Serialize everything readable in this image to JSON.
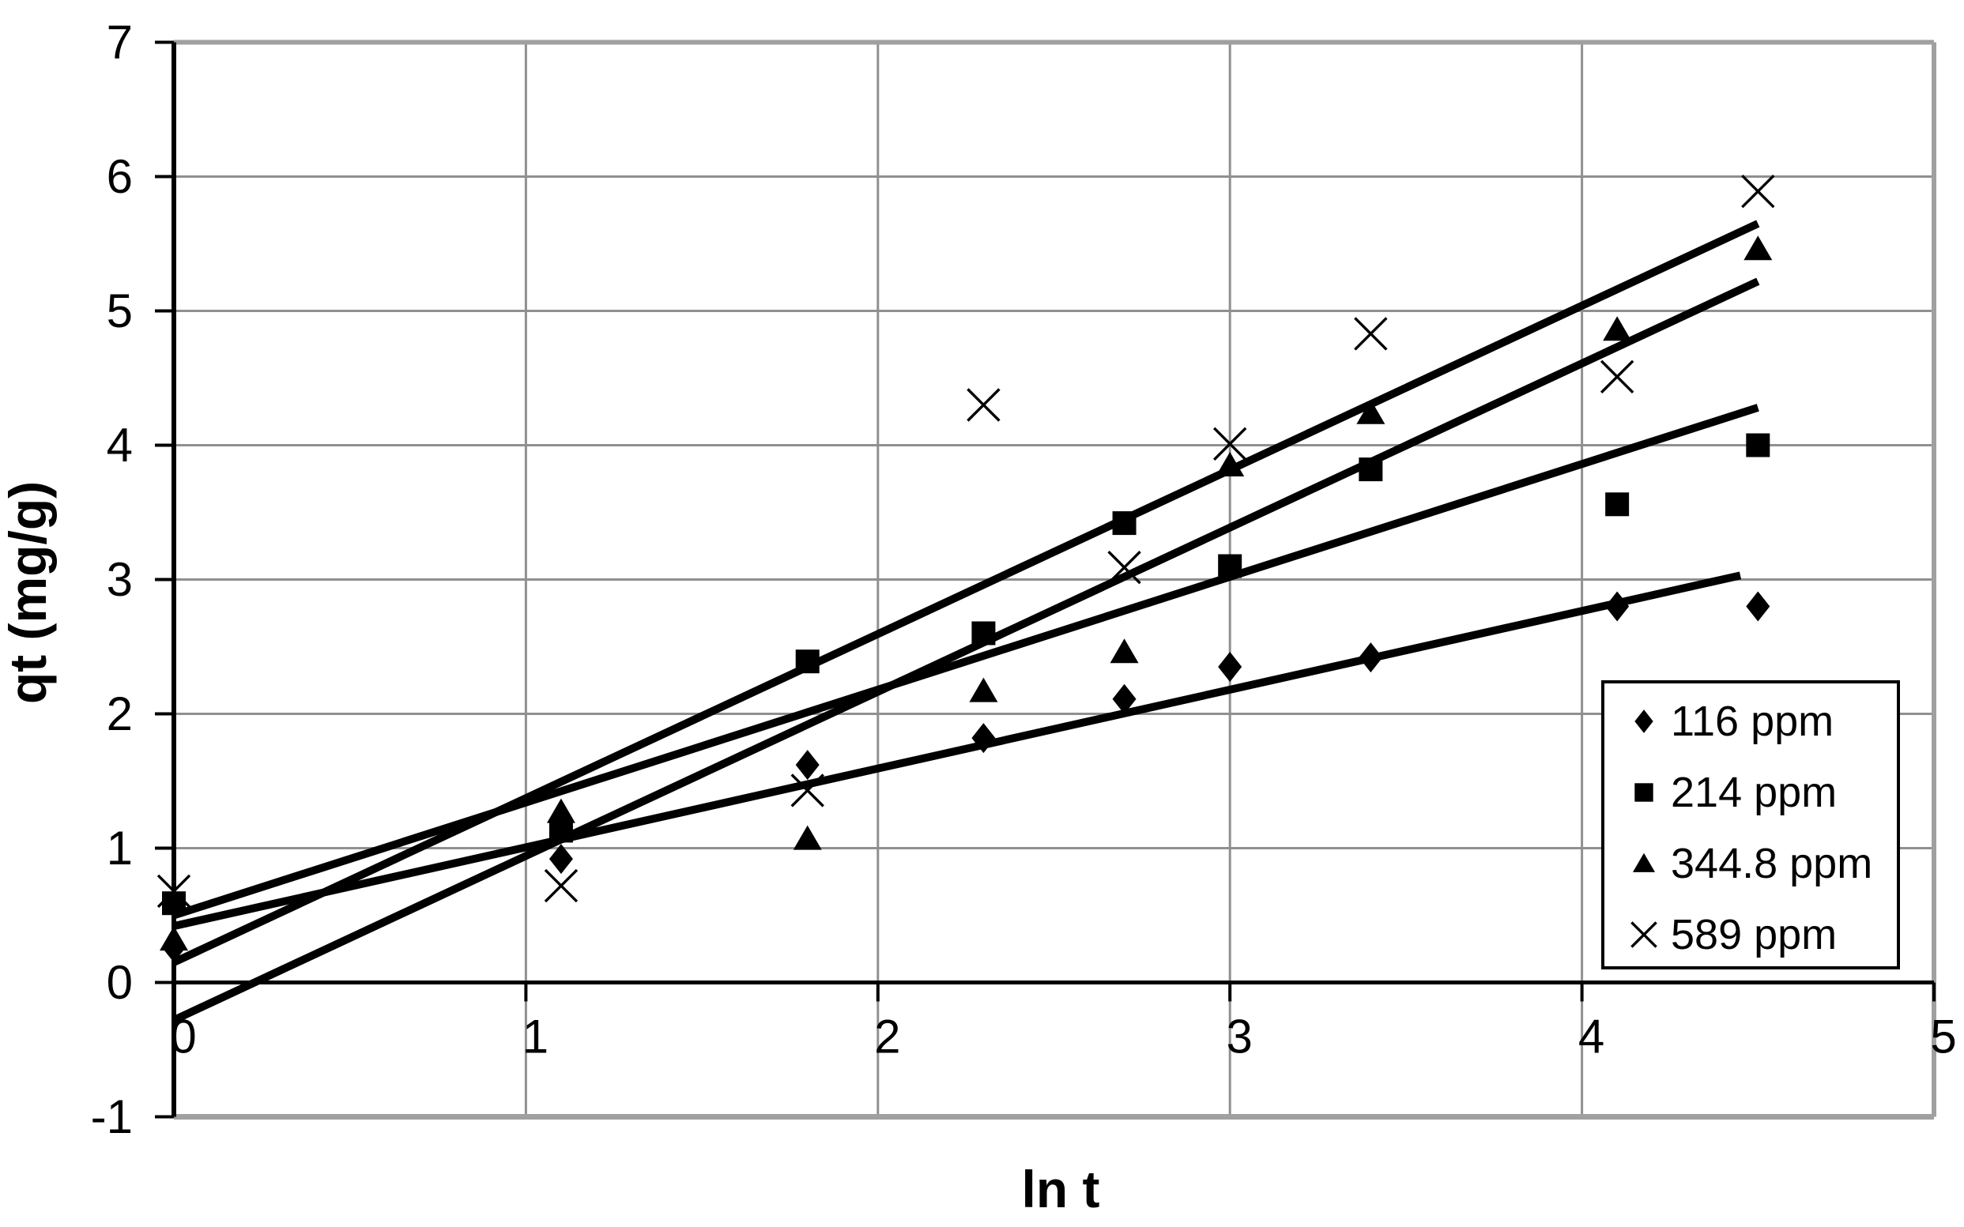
{
  "figure_title": "",
  "chart_data": {
    "type": "scatter",
    "xlabel": "ln t",
    "ylabel": "qt (mg/g)",
    "xlim": [
      0,
      5
    ],
    "ylim": [
      -1,
      7
    ],
    "x_ticks": [
      "0",
      "1",
      "2",
      "3",
      "4",
      "5"
    ],
    "y_ticks": [
      "-1",
      "0",
      "1",
      "2",
      "3",
      "4",
      "5",
      "6",
      "7"
    ],
    "grid": true,
    "legend_position": "inside lower right",
    "x": [
      0,
      1.1,
      1.8,
      2.3,
      2.7,
      3.0,
      3.4,
      4.1,
      4.5
    ],
    "series": [
      {
        "name": "116 ppm",
        "marker": "diamond",
        "color": "#000000",
        "values": [
          0.26,
          0.92,
          1.62,
          1.82,
          2.11,
          2.35,
          2.42,
          2.8,
          2.8
        ],
        "trendline": {
          "x1": 0,
          "y1": 0.42,
          "x2": 4.45,
          "y2": 3.03
        }
      },
      {
        "name": "214 ppm",
        "marker": "square",
        "color": "#000000",
        "values": [
          0.59,
          1.13,
          2.39,
          2.6,
          3.42,
          3.1,
          3.82,
          3.56,
          4.0
        ],
        "trendline": {
          "x1": 0,
          "y1": 0.5,
          "x2": 4.5,
          "y2": 4.28
        }
      },
      {
        "name": "344.8 ppm",
        "marker": "triangle",
        "color": "#000000",
        "values": [
          0.32,
          1.27,
          1.07,
          2.17,
          2.46,
          3.85,
          4.24,
          4.86,
          5.46
        ],
        "trendline": {
          "x1": 0,
          "y1": -0.28,
          "x2": 4.5,
          "y2": 5.22
        }
      },
      {
        "name": "589 ppm",
        "marker": "x",
        "color": "#000000",
        "values": [
          0.68,
          0.72,
          1.43,
          4.3,
          3.09,
          4.01,
          4.83,
          4.51,
          5.89
        ],
        "trendline": {
          "x1": 0,
          "y1": 0.15,
          "x2": 4.5,
          "y2": 5.65
        }
      }
    ],
    "colors": {
      "gridline": "#909090",
      "plot_border": "#a0a0a0",
      "axis": "#000000",
      "background": "#ffffff"
    }
  }
}
